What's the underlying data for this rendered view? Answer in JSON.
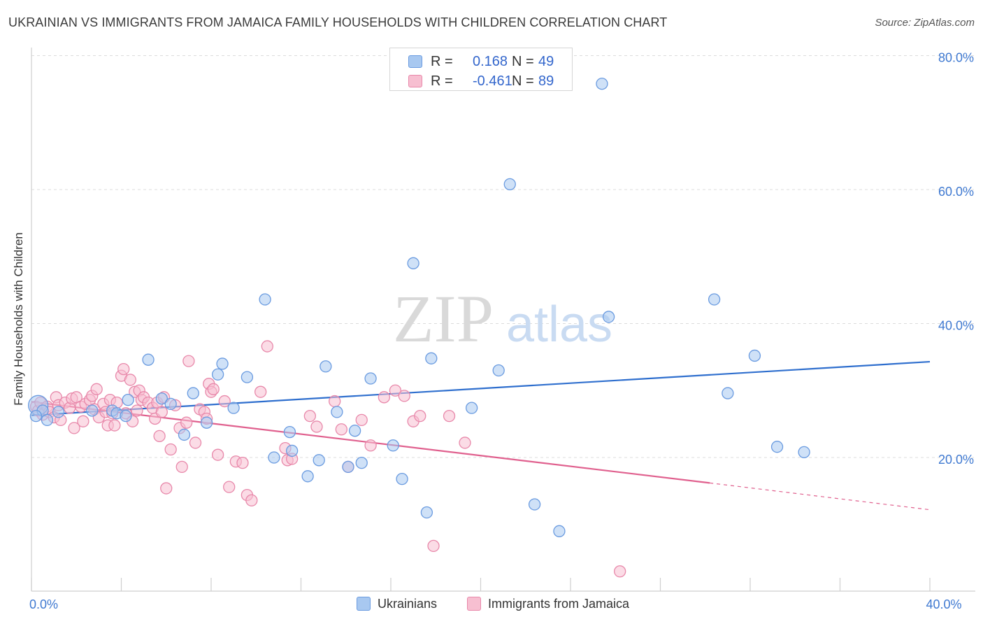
{
  "title": "UKRAINIAN VS IMMIGRANTS FROM JAMAICA FAMILY HOUSEHOLDS WITH CHILDREN CORRELATION CHART",
  "source": "Source: ZipAtlas.com",
  "watermark": {
    "zip": "ZIP",
    "atlas": "atlas"
  },
  "legend": {
    "rows": [
      {
        "r_label": "R =",
        "r_value": "0.168",
        "n_label": "N =",
        "n_value": "49",
        "color": "#a8c8f0",
        "border": "#6a9be0"
      },
      {
        "r_label": "R =",
        "r_value": "-0.461",
        "n_label": "N =",
        "n_value": "89",
        "color": "#f7bfd1",
        "border": "#e888aa"
      }
    ]
  },
  "bottom_legend": [
    {
      "label": "Ukrainians",
      "color": "#a8c8f0",
      "border": "#6a9be0"
    },
    {
      "label": "Immigrants from Jamaica",
      "color": "#f7bfd1",
      "border": "#e888aa"
    }
  ],
  "chart_data": {
    "type": "scatter",
    "title": "UKRAINIAN VS IMMIGRANTS FROM JAMAICA FAMILY HOUSEHOLDS WITH CHILDREN CORRELATION CHART",
    "xlabel": "",
    "ylabel": "Family Households with Children",
    "xlim": [
      0,
      40
    ],
    "ylim": [
      0,
      82
    ],
    "x_ticks": [
      0,
      4,
      8,
      12,
      16,
      20,
      24,
      28,
      32,
      36,
      40
    ],
    "x_tick_labels": {
      "0": "0.0%",
      "40": "40.0%"
    },
    "y_ticks": [
      20,
      40,
      60,
      80
    ],
    "y_tick_labels": [
      "20.0%",
      "40.0%",
      "60.0%",
      "80.0%"
    ],
    "grid": "horizontal dashed",
    "series": [
      {
        "name": "Ukrainians",
        "color": "#6a9be0",
        "fill": "#a8c8f0",
        "trend": {
          "x": [
            0,
            40
          ],
          "y": [
            26.3,
            34.3
          ],
          "color": "#2f6fce"
        },
        "points": [
          [
            0.3,
            27.8
          ],
          [
            0.5,
            27.0
          ],
          [
            0.7,
            25.6
          ],
          [
            1.2,
            26.8
          ],
          [
            2.7,
            27.0
          ],
          [
            3.6,
            27.0
          ],
          [
            3.8,
            26.6
          ],
          [
            4.2,
            26.2
          ],
          [
            4.3,
            28.6
          ],
          [
            5.2,
            34.6
          ],
          [
            5.8,
            28.8
          ],
          [
            6.2,
            28.0
          ],
          [
            6.8,
            23.4
          ],
          [
            7.2,
            29.6
          ],
          [
            7.8,
            25.2
          ],
          [
            8.3,
            32.4
          ],
          [
            8.5,
            34.0
          ],
          [
            9.0,
            27.4
          ],
          [
            9.6,
            32.0
          ],
          [
            10.4,
            43.6
          ],
          [
            10.8,
            20.0
          ],
          [
            11.5,
            23.8
          ],
          [
            11.6,
            21.0
          ],
          [
            12.3,
            17.2
          ],
          [
            12.8,
            19.6
          ],
          [
            13.1,
            33.6
          ],
          [
            13.6,
            26.8
          ],
          [
            14.1,
            18.6
          ],
          [
            14.4,
            24.0
          ],
          [
            14.7,
            19.2
          ],
          [
            15.1,
            31.8
          ],
          [
            16.1,
            21.8
          ],
          [
            16.5,
            16.8
          ],
          [
            17.0,
            49.0
          ],
          [
            17.6,
            11.8
          ],
          [
            17.8,
            34.8
          ],
          [
            19.6,
            27.4
          ],
          [
            20.8,
            33.0
          ],
          [
            21.3,
            60.8
          ],
          [
            22.4,
            13.0
          ],
          [
            23.5,
            9.0
          ],
          [
            25.4,
            75.8
          ],
          [
            25.7,
            41.0
          ],
          [
            30.4,
            43.6
          ],
          [
            31.0,
            29.6
          ],
          [
            32.2,
            35.2
          ],
          [
            33.2,
            21.6
          ],
          [
            34.4,
            20.8
          ],
          [
            0.2,
            26.2
          ]
        ]
      },
      {
        "name": "Immigrants from Jamaica",
        "color": "#e888aa",
        "fill": "#f7bfd1",
        "trend": {
          "x": [
            0,
            30.2
          ],
          "y": [
            28.3,
            16.2
          ],
          "color": "#e0608e",
          "dashed_to": [
            40,
            12.2
          ]
        },
        "points": [
          [
            0.2,
            27.6
          ],
          [
            0.3,
            27.0
          ],
          [
            0.4,
            28.2
          ],
          [
            0.5,
            26.4
          ],
          [
            0.7,
            27.6
          ],
          [
            0.8,
            26.8
          ],
          [
            1.0,
            26.0
          ],
          [
            1.1,
            29.0
          ],
          [
            1.2,
            27.8
          ],
          [
            1.3,
            25.6
          ],
          [
            1.5,
            28.2
          ],
          [
            1.7,
            27.4
          ],
          [
            1.8,
            28.8
          ],
          [
            1.9,
            24.4
          ],
          [
            2.0,
            29.0
          ],
          [
            2.2,
            27.6
          ],
          [
            2.3,
            25.4
          ],
          [
            2.4,
            28.0
          ],
          [
            2.6,
            28.6
          ],
          [
            2.7,
            29.2
          ],
          [
            2.8,
            27.2
          ],
          [
            2.9,
            30.2
          ],
          [
            3.0,
            26.0
          ],
          [
            3.2,
            28.0
          ],
          [
            3.3,
            26.8
          ],
          [
            3.4,
            24.8
          ],
          [
            3.5,
            28.6
          ],
          [
            3.6,
            26.6
          ],
          [
            3.7,
            24.8
          ],
          [
            3.8,
            28.2
          ],
          [
            4.0,
            32.2
          ],
          [
            4.1,
            33.2
          ],
          [
            4.2,
            26.6
          ],
          [
            4.4,
            31.6
          ],
          [
            4.5,
            25.4
          ],
          [
            4.6,
            29.8
          ],
          [
            4.7,
            27.0
          ],
          [
            4.8,
            30.0
          ],
          [
            4.9,
            28.6
          ],
          [
            5.0,
            29.0
          ],
          [
            5.2,
            28.2
          ],
          [
            5.4,
            27.4
          ],
          [
            5.5,
            25.8
          ],
          [
            5.6,
            28.2
          ],
          [
            5.7,
            23.2
          ],
          [
            5.8,
            26.8
          ],
          [
            5.9,
            29.0
          ],
          [
            6.0,
            15.4
          ],
          [
            6.2,
            21.2
          ],
          [
            6.4,
            27.8
          ],
          [
            6.6,
            24.4
          ],
          [
            6.7,
            18.6
          ],
          [
            6.9,
            25.2
          ],
          [
            7.0,
            34.4
          ],
          [
            7.3,
            22.2
          ],
          [
            7.5,
            27.2
          ],
          [
            7.7,
            26.8
          ],
          [
            7.8,
            25.8
          ],
          [
            7.9,
            31.0
          ],
          [
            8.0,
            29.8
          ],
          [
            8.1,
            30.2
          ],
          [
            8.3,
            20.4
          ],
          [
            8.6,
            28.4
          ],
          [
            8.8,
            15.6
          ],
          [
            9.1,
            19.4
          ],
          [
            9.4,
            19.2
          ],
          [
            9.6,
            14.4
          ],
          [
            9.8,
            13.6
          ],
          [
            10.2,
            29.8
          ],
          [
            10.5,
            36.6
          ],
          [
            11.3,
            21.4
          ],
          [
            11.4,
            19.6
          ],
          [
            11.6,
            19.8
          ],
          [
            12.4,
            26.2
          ],
          [
            12.7,
            24.6
          ],
          [
            13.5,
            28.4
          ],
          [
            13.8,
            24.2
          ],
          [
            14.1,
            18.6
          ],
          [
            14.7,
            25.6
          ],
          [
            15.1,
            21.8
          ],
          [
            15.7,
            29.0
          ],
          [
            16.2,
            30.0
          ],
          [
            16.6,
            29.2
          ],
          [
            17.0,
            25.4
          ],
          [
            17.3,
            26.2
          ],
          [
            17.9,
            6.8
          ],
          [
            18.6,
            26.2
          ],
          [
            19.3,
            22.2
          ],
          [
            26.2,
            3.0
          ]
        ]
      }
    ]
  }
}
